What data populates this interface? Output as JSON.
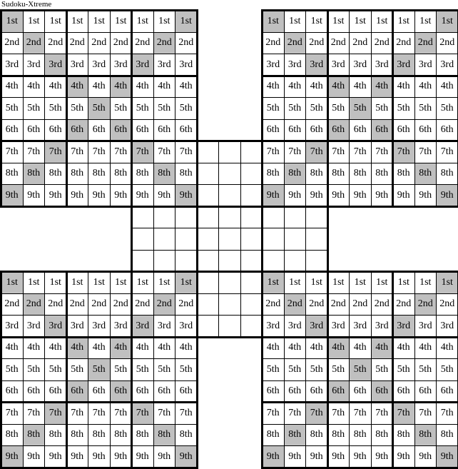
{
  "title": "Sudoku-Xtreme",
  "row_labels": [
    "1st",
    "2nd",
    "3rd",
    "4th",
    "5th",
    "6th",
    "7th",
    "8th",
    "9th"
  ],
  "colors": {
    "shaded": "#c0c0c0",
    "cell": "#ffffff",
    "line": "#000000"
  },
  "puzzle": {
    "type": "samurai",
    "grids": [
      {
        "name": "top-left",
        "filled": true
      },
      {
        "name": "top-right",
        "filled": true
      },
      {
        "name": "center",
        "filled": false
      },
      {
        "name": "bottom-left",
        "filled": true
      },
      {
        "name": "bottom-right",
        "filled": true
      }
    ],
    "shaded_pattern": [
      [
        0,
        8
      ],
      [
        1,
        7
      ],
      [
        2,
        6
      ],
      [
        3,
        5
      ],
      [
        4
      ],
      [
        3,
        5
      ],
      [
        2,
        6
      ],
      [
        1,
        7
      ],
      [
        0,
        8
      ]
    ]
  }
}
